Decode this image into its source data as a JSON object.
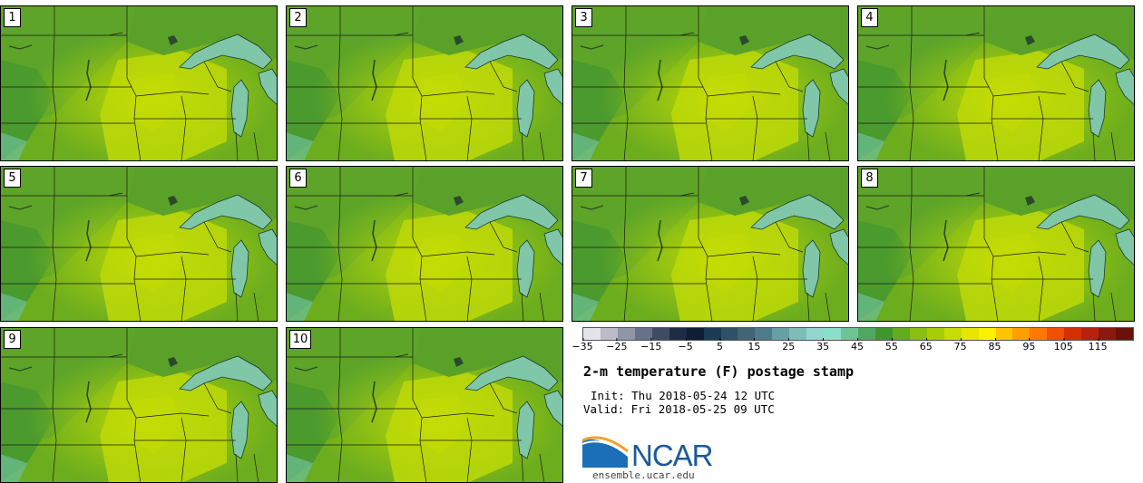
{
  "panels": [
    {
      "label": "1"
    },
    {
      "label": "2"
    },
    {
      "label": "3"
    },
    {
      "label": "4"
    },
    {
      "label": "5"
    },
    {
      "label": "6"
    },
    {
      "label": "7"
    },
    {
      "label": "8"
    },
    {
      "label": "9"
    },
    {
      "label": "10"
    }
  ],
  "colorbar": {
    "colors": [
      "#e3e3ea",
      "#bcbcc8",
      "#8e96a8",
      "#66718a",
      "#3f4a63",
      "#1d2b44",
      "#0e1c34",
      "#1b3a55",
      "#2e5168",
      "#3f6577",
      "#4f7a89",
      "#66a0a5",
      "#7fbcb8",
      "#93d6cf",
      "#8adfc9",
      "#6fc497",
      "#4fa861",
      "#40952f",
      "#62ab1e",
      "#8abf10",
      "#a8cc08",
      "#c8dc08",
      "#e6e600",
      "#fff000",
      "#ffc400",
      "#ff9e00",
      "#ff7800",
      "#f05000",
      "#d43000",
      "#b82010",
      "#8a1a10",
      "#6a1208"
    ],
    "tick_labels": [
      "−35",
      "−25",
      "−15",
      "−5",
      "5",
      "15",
      "25",
      "35",
      "45",
      "55",
      "65",
      "75",
      "85",
      "95",
      "105",
      "115"
    ]
  },
  "title": "2-m temperature (F) postage stamp",
  "init": "Init: Thu 2018-05-24 12 UTC",
  "valid": "Valid: Fri 2018-05-25 09 UTC",
  "logo": {
    "text": "NCAR",
    "url": "ensemble.ucar.edu"
  }
}
